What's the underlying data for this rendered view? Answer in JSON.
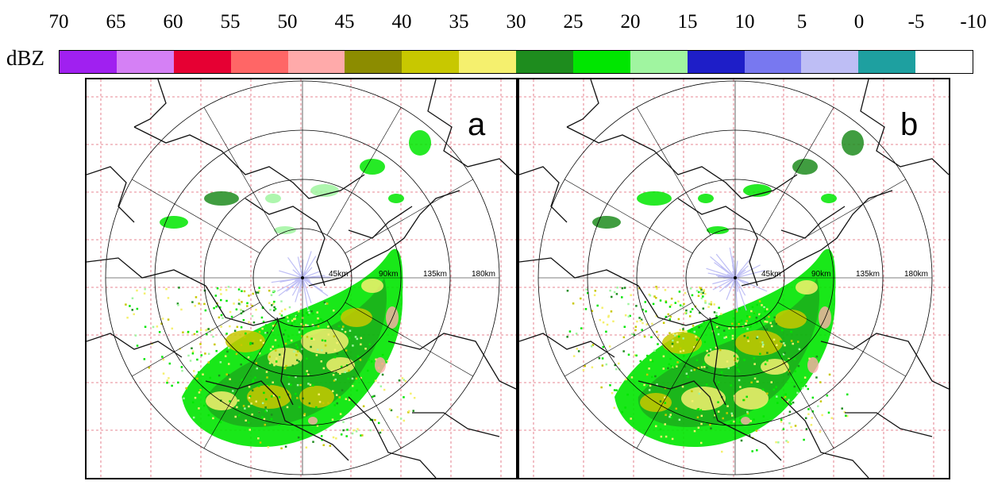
{
  "legend": {
    "unit": "dBZ",
    "ticks": [
      "70",
      "65",
      "60",
      "55",
      "50",
      "45",
      "40",
      "35",
      "30",
      "25",
      "20",
      "15",
      "10",
      "5",
      "0",
      "-5",
      "-10"
    ],
    "colors": [
      "#a020f0",
      "#d580f5",
      "#e60033",
      "#ff6666",
      "#ffaaaa",
      "#8c8c00",
      "#c8c800",
      "#f5f06e",
      "#1e8c1e",
      "#00e600",
      "#a0f5a0",
      "#1e1ec8",
      "#7878f0",
      "#bebef5",
      "#1ea0a0",
      "#ffffff"
    ]
  },
  "panels": [
    {
      "label": "a",
      "rings": [
        "45km",
        "90km",
        "135km",
        "180km"
      ]
    },
    {
      "label": "b",
      "rings": [
        "45km",
        "90km",
        "135km",
        "180km"
      ]
    }
  ]
}
